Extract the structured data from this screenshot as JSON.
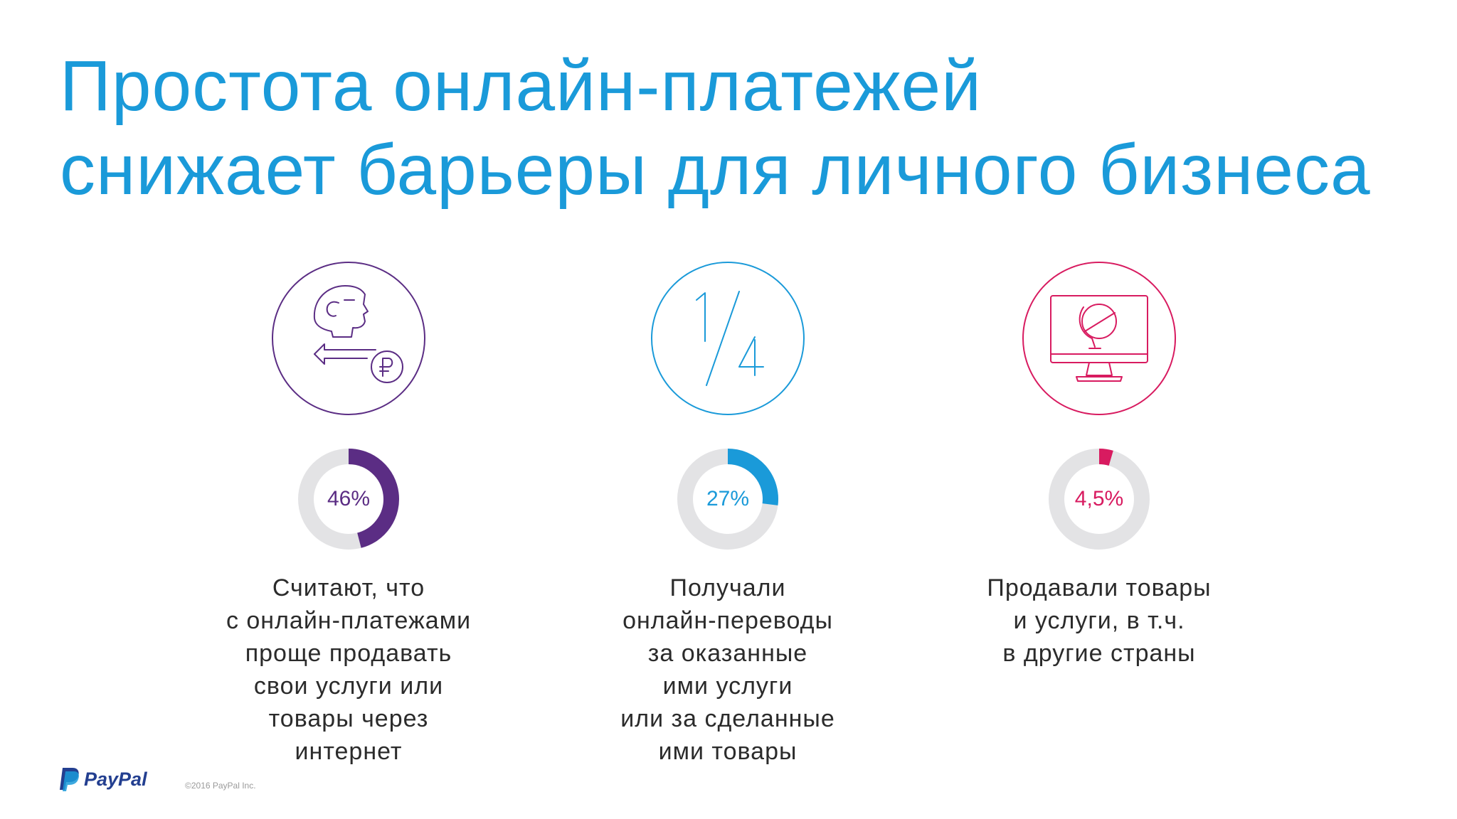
{
  "title": {
    "line1": "Простота онлайн-платежей",
    "line2": "снижает барьеры для личного бизнеса"
  },
  "colors": {
    "title": "#1a9ad9",
    "purple": "#5b2d84",
    "blue": "#1a9ad9",
    "pink": "#d81b60",
    "track": "#e3e3e5"
  },
  "chart_data": [
    {
      "type": "pie",
      "value": 46,
      "label": "46%",
      "color": "#5b2d84",
      "icon": "person-ruble-icon",
      "description": [
        "Считают, что",
        "с онлайн-платежами",
        "проще продавать",
        "свои услуги или",
        "товары через",
        "интернет"
      ]
    },
    {
      "type": "pie",
      "value": 27,
      "label": "27%",
      "color": "#1a9ad9",
      "icon": "one-quarter-icon",
      "description": [
        "Получали",
        "онлайн-переводы",
        "за оказанные",
        "ими услуги",
        "или за сделанные",
        "ими товары"
      ]
    },
    {
      "type": "pie",
      "value": 4.5,
      "label": "4,5%",
      "color": "#d81b60",
      "icon": "monitor-globe-icon",
      "description": [
        "Продавали товары",
        "и  услуги, в т.ч.",
        "в другие страны"
      ]
    }
  ],
  "footer": {
    "logo": "PayPal",
    "copyright": "©2016 PayPal Inc."
  }
}
